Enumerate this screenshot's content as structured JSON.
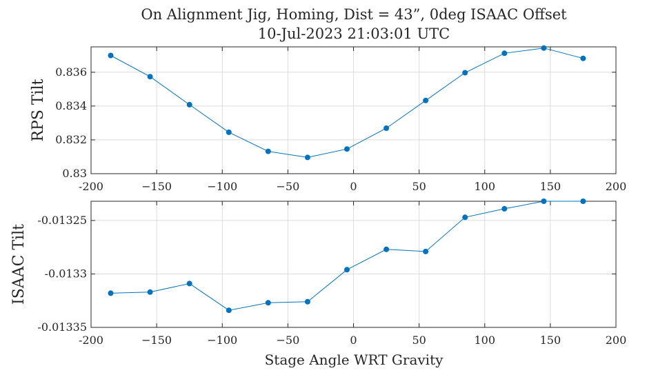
{
  "chart_data": {
    "title": [
      "On Alignment Jig, Homing, Dist = 43”, 0deg ISAAC Offset",
      "10-Jul-2023 21:03:01 UTC"
    ],
    "xlabel": "Stage Angle WRT Gravity",
    "color": "#0072BD",
    "grid": true,
    "x": [
      -185,
      -155,
      -125,
      -95,
      -65,
      -35,
      -5,
      25,
      55,
      85,
      115,
      145,
      175
    ],
    "subplots": [
      {
        "type": "line",
        "ylabel": "RPS Tilt",
        "xlim": [
          -200,
          200
        ],
        "ylim": [
          0.83,
          0.8375
        ],
        "xticks": [
          -200,
          -150,
          -100,
          -50,
          0,
          50,
          100,
          150,
          200
        ],
        "xtick_labels": [
          "-200",
          "−150",
          "−100",
          "−50",
          "0",
          "50",
          "100",
          "150",
          "200"
        ],
        "yticks": [
          0.83,
          0.832,
          0.834,
          0.836
        ],
        "ytick_labels": [
          "0.83",
          "0.832",
          "0.834",
          "0.836"
        ],
        "values": [
          0.83699,
          0.83574,
          0.83408,
          0.83245,
          0.83132,
          0.83096,
          0.83146,
          0.83269,
          0.83433,
          0.83597,
          0.83712,
          0.83743,
          0.83682
        ]
      },
      {
        "type": "line",
        "ylabel": "ISAAC Tilt",
        "xlim": [
          -200,
          200
        ],
        "ylim": [
          -0.01335,
          -0.013232
        ],
        "xticks": [
          -200,
          -150,
          -100,
          -50,
          0,
          50,
          100,
          150,
          200
        ],
        "xtick_labels": [
          "-200",
          "−150",
          "−100",
          "−50",
          "0",
          "50",
          "100",
          "150",
          "200"
        ],
        "yticks": [
          -0.01335,
          -0.0133,
          -0.01325
        ],
        "ytick_labels": [
          "-0.01335",
          "-0.0133",
          "-0.01325"
        ],
        "values": [
          -0.013318,
          -0.013317,
          -0.013309,
          -0.013334,
          -0.013327,
          -0.013326,
          -0.013296,
          -0.013277,
          -0.013279,
          -0.013247,
          -0.013239,
          -0.013232,
          -0.013232
        ]
      }
    ]
  }
}
